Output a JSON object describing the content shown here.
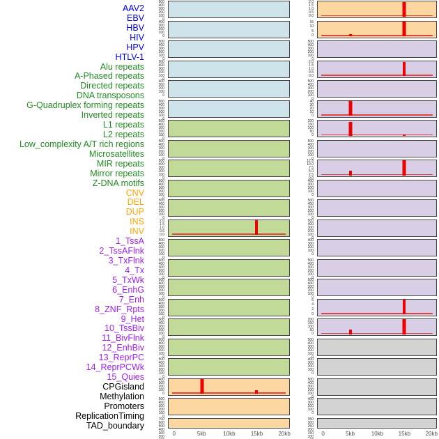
{
  "chart_data": {
    "type": "bar",
    "title": "",
    "x_axis": {
      "range_kb": [
        0,
        20
      ],
      "ticks": [
        {
          "label": "0",
          "kb": 0
        },
        {
          "label": "5kb",
          "kb": 5
        },
        {
          "label": "10kb",
          "kb": 10
        },
        {
          "label": "15kb",
          "kb": 15
        },
        {
          "label": "20kb",
          "kb": 20
        }
      ]
    },
    "groups": {
      "virus": {
        "label_color": "#0000EE",
        "panel_bg": "#cfe3eb"
      },
      "repeat": {
        "label_color": "#228B22",
        "panel_bg": "#c1da97"
      },
      "sv": {
        "label_color": "#FFA500",
        "panel_bg": "#fcd7a2"
      },
      "chromatin": {
        "label_color": "#A020F0",
        "panel_bg": "#d8cee6"
      },
      "other": {
        "label_color": "#000000",
        "panel_bg": "#d3d3d3"
      }
    },
    "spike_color": "#ec0000",
    "baseline_color": "#e24444",
    "panels": [
      {
        "label": "AAV2",
        "group": "virus",
        "column": "left",
        "row": 1,
        "yticks": [
          "500",
          "400",
          "300",
          "200",
          "100",
          "0"
        ],
        "baseline": false,
        "spikes": []
      },
      {
        "label": "EBV",
        "group": "virus",
        "column": "left",
        "row": 2,
        "yticks": [
          "400",
          "300",
          "200",
          "100",
          "0"
        ],
        "baseline": false,
        "spikes": []
      },
      {
        "label": "HBV",
        "group": "virus",
        "column": "left",
        "row": 3,
        "yticks": [
          "500",
          "400",
          "300",
          "200",
          "100",
          "0"
        ],
        "baseline": false,
        "spikes": []
      },
      {
        "label": "HIV",
        "group": "virus",
        "column": "left",
        "row": 4,
        "yticks": [
          "500",
          "400",
          "300",
          "200",
          "100",
          "0"
        ],
        "baseline": false,
        "spikes": []
      },
      {
        "label": "HPV",
        "group": "virus",
        "column": "left",
        "row": 5,
        "yticks": [
          "400",
          "300",
          "200",
          "100",
          "0"
        ],
        "baseline": false,
        "spikes": []
      },
      {
        "label": "HTLV-1",
        "group": "virus",
        "column": "left",
        "row": 6,
        "yticks": [
          "500",
          "400",
          "300",
          "200",
          "100",
          "0"
        ],
        "baseline": false,
        "spikes": []
      },
      {
        "label": "Alu repeats",
        "group": "repeat",
        "column": "left",
        "row": 7,
        "yticks": [
          "500",
          "400",
          "300",
          "200",
          "100",
          "0"
        ],
        "baseline": false,
        "spikes": []
      },
      {
        "label": "A-Phased repeats",
        "group": "repeat",
        "column": "left",
        "row": 8,
        "yticks": [
          "500",
          "400",
          "300",
          "200",
          "100",
          "0"
        ],
        "baseline": false,
        "spikes": []
      },
      {
        "label": "Directed repeats",
        "group": "repeat",
        "column": "left",
        "row": 9,
        "yticks": [
          "500",
          "400",
          "300",
          "200",
          "100",
          "0"
        ],
        "baseline": false,
        "spikes": []
      },
      {
        "label": "DNA transposons",
        "group": "repeat",
        "column": "left",
        "row": 10,
        "yticks": [
          "500",
          "400",
          "300",
          "200",
          "100",
          "0"
        ],
        "baseline": false,
        "spikes": []
      },
      {
        "label": "G-Quadruplex forming repeats",
        "group": "repeat",
        "column": "left",
        "row": 11,
        "yticks": [
          "500",
          "400",
          "300",
          "200",
          "100",
          "0"
        ],
        "baseline": false,
        "spikes": []
      },
      {
        "label": "Inverted repeats",
        "group": "repeat",
        "column": "left",
        "row": 12,
        "yticks": [
          "2.0",
          "1.5",
          "1.0",
          "0.5",
          "0.0"
        ],
        "baseline": true,
        "spikes": [
          {
            "kb": 15,
            "h": 1.0,
            "w": 4
          }
        ]
      },
      {
        "label": "L1 repeats",
        "group": "repeat",
        "column": "left",
        "row": 13,
        "yticks": [
          "500",
          "400",
          "300",
          "200",
          "100",
          "0"
        ],
        "baseline": false,
        "spikes": []
      },
      {
        "label": "L2 repeats",
        "group": "repeat",
        "column": "left",
        "row": 14,
        "yticks": [
          "500",
          "400",
          "300",
          "200",
          "100",
          "0"
        ],
        "baseline": false,
        "spikes": []
      },
      {
        "label": "Low_complexity A/T rich regions",
        "group": "repeat",
        "column": "left",
        "row": 15,
        "yticks": [
          "500",
          "400",
          "300",
          "200",
          "100",
          "0"
        ],
        "baseline": false,
        "spikes": []
      },
      {
        "label": "Microsatellites",
        "group": "repeat",
        "column": "left",
        "row": 16,
        "yticks": [
          "500",
          "400",
          "300",
          "200",
          "100",
          "0"
        ],
        "baseline": false,
        "spikes": []
      },
      {
        "label": "MIR repeats",
        "group": "repeat",
        "column": "left",
        "row": 17,
        "yticks": [
          "500",
          "400",
          "300",
          "200",
          "100",
          "0"
        ],
        "baseline": false,
        "spikes": []
      },
      {
        "label": "Mirror repeats",
        "group": "repeat",
        "column": "left",
        "row": 18,
        "yticks": [
          "500",
          "400",
          "300",
          "200",
          "100",
          "0"
        ],
        "baseline": false,
        "spikes": []
      },
      {
        "label": "Z-DNA motifs",
        "group": "repeat",
        "column": "left",
        "row": 19,
        "yticks": [
          "500",
          "400",
          "300",
          "200",
          "100",
          "0"
        ],
        "baseline": false,
        "spikes": []
      },
      {
        "label": "CNV",
        "group": "sv",
        "column": "left",
        "row": 20,
        "yticks": [
          "400",
          "300",
          "200",
          "100",
          "0"
        ],
        "baseline": true,
        "spikes": [
          {
            "kb": 5,
            "h": 0.97,
            "w": 5
          },
          {
            "kb": 15,
            "h": 0.24,
            "w": 4
          }
        ]
      },
      {
        "label": "DEL",
        "group": "sv",
        "column": "left",
        "row": 21,
        "yticks": [
          "500",
          "400",
          "300",
          "200",
          "100",
          "0"
        ],
        "baseline": false,
        "spikes": []
      },
      {
        "label": "DUP",
        "group": "sv",
        "column": "left",
        "row": 22,
        "yticks": [
          "700",
          "600",
          "500",
          "400",
          "300",
          "200",
          "100",
          "0"
        ],
        "baseline": false,
        "spikes": []
      },
      {
        "label": "INS",
        "group": "sv",
        "column": "right",
        "row": 1,
        "yticks": [
          "2.0",
          "1.5",
          "1.0",
          "0.5",
          "0.0"
        ],
        "baseline": true,
        "spikes": [
          {
            "kb": 15,
            "h": 0.97,
            "w": 5
          }
        ]
      },
      {
        "label": "INV",
        "group": "sv",
        "column": "right",
        "row": 2,
        "yticks": [
          "15",
          "10",
          "5",
          "0"
        ],
        "baseline": true,
        "spikes": [
          {
            "kb": 5,
            "h": 0.13,
            "w": 4
          },
          {
            "kb": 15,
            "h": 0.97,
            "w": 5
          }
        ]
      },
      {
        "label": "1_TssA",
        "group": "chromatin",
        "column": "right",
        "row": 3,
        "yticks": [
          "500",
          "400",
          "300",
          "200",
          "100",
          "0"
        ],
        "baseline": false,
        "spikes": []
      },
      {
        "label": "2_TssAFlnk",
        "group": "chromatin",
        "column": "right",
        "row": 4,
        "yticks": [
          "2.0",
          "1.5",
          "1.0",
          "0.5",
          "0.0"
        ],
        "baseline": true,
        "spikes": [
          {
            "kb": 15,
            "h": 0.95,
            "w": 4
          }
        ]
      },
      {
        "label": "3_TxFlnk",
        "group": "chromatin",
        "column": "right",
        "row": 5,
        "yticks": [
          "500",
          "400",
          "300",
          "200",
          "100",
          "0"
        ],
        "baseline": false,
        "spikes": []
      },
      {
        "label": "4_Tx",
        "group": "chromatin",
        "column": "right",
        "row": 6,
        "yticks": [
          "40",
          "30",
          "20",
          "10",
          "0"
        ],
        "baseline": true,
        "spikes": [
          {
            "kb": 5,
            "h": 1.0,
            "w": 5
          }
        ]
      },
      {
        "label": "5_TxWk",
        "group": "chromatin",
        "column": "right",
        "row": 7,
        "yticks": [
          "200",
          "150",
          "100",
          "50",
          "0"
        ],
        "baseline": true,
        "spikes": [
          {
            "kb": 5,
            "h": 0.93,
            "w": 5
          },
          {
            "kb": 15,
            "h": 0.07,
            "w": 4
          }
        ]
      },
      {
        "label": "6_EnhG",
        "group": "chromatin",
        "column": "right",
        "row": 8,
        "yticks": [
          "500",
          "400",
          "300",
          "200",
          "100",
          "0"
        ],
        "baseline": false,
        "spikes": []
      },
      {
        "label": "7_Enh",
        "group": "chromatin",
        "column": "right",
        "row": 9,
        "yticks": [
          "12.5",
          "10.0",
          "7.5",
          "5.0",
          "2.5",
          "0.0"
        ],
        "baseline": true,
        "spikes": [
          {
            "kb": 5,
            "h": 0.32,
            "w": 4
          },
          {
            "kb": 15,
            "h": 1.0,
            "w": 5
          }
        ]
      },
      {
        "label": "8_ZNF_Rpts",
        "group": "chromatin",
        "column": "right",
        "row": 10,
        "yticks": [
          "400",
          "300",
          "200",
          "100",
          "0"
        ],
        "baseline": false,
        "spikes": []
      },
      {
        "label": "9_Het",
        "group": "chromatin",
        "column": "right",
        "row": 11,
        "yticks": [
          "500",
          "400",
          "300",
          "200",
          "100",
          "0"
        ],
        "baseline": false,
        "spikes": []
      },
      {
        "label": "10_TssBiv",
        "group": "chromatin",
        "column": "right",
        "row": 12,
        "yticks": [
          "500",
          "400",
          "300",
          "200",
          "100",
          "0"
        ],
        "baseline": false,
        "spikes": []
      },
      {
        "label": "11_BivFlnk",
        "group": "chromatin",
        "column": "right",
        "row": 13,
        "yticks": [
          "400",
          "300",
          "200",
          "100",
          "0"
        ],
        "baseline": false,
        "spikes": []
      },
      {
        "label": "12_EnhBiv",
        "group": "chromatin",
        "column": "right",
        "row": 14,
        "yticks": [
          "500",
          "400",
          "300",
          "200",
          "100",
          "0"
        ],
        "baseline": false,
        "spikes": []
      },
      {
        "label": "13_ReprPC",
        "group": "chromatin",
        "column": "right",
        "row": 15,
        "yticks": [
          "500",
          "400",
          "300",
          "200",
          "100",
          "0"
        ],
        "baseline": false,
        "spikes": []
      },
      {
        "label": "14_ReprPCWk",
        "group": "chromatin",
        "column": "right",
        "row": 16,
        "yticks": [
          "6",
          "4",
          "2",
          "0"
        ],
        "baseline": true,
        "spikes": [
          {
            "kb": 15,
            "h": 1.0,
            "w": 4
          }
        ]
      },
      {
        "label": "15_Quies",
        "group": "chromatin",
        "column": "right",
        "row": 17,
        "yticks": [
          "200",
          "150",
          "100",
          "50",
          "0"
        ],
        "baseline": true,
        "spikes": [
          {
            "kb": 5,
            "h": 0.3,
            "w": 4
          },
          {
            "kb": 15,
            "h": 1.0,
            "w": 5
          }
        ]
      },
      {
        "label": "CPGisland",
        "group": "other",
        "column": "right",
        "row": 18,
        "yticks": [
          "500",
          "400",
          "300",
          "200",
          "100",
          "0"
        ],
        "baseline": false,
        "spikes": []
      },
      {
        "label": "Methylation",
        "group": "other",
        "column": "right",
        "row": 19,
        "yticks": [
          "400",
          "300",
          "200",
          "100",
          "0"
        ],
        "baseline": false,
        "spikes": []
      },
      {
        "label": "Promoters",
        "group": "other",
        "column": "right",
        "row": 20,
        "yticks": [
          "500",
          "400",
          "300",
          "200",
          "100",
          "0"
        ],
        "baseline": false,
        "spikes": []
      },
      {
        "label": "ReplicationTiming",
        "group": "other",
        "column": "right",
        "row": 21,
        "yticks": [
          "400",
          "300",
          "200",
          "100",
          "0"
        ],
        "baseline": false,
        "spikes": []
      },
      {
        "label": "TAD_boundary",
        "group": "other",
        "column": "right",
        "row": 22,
        "yticks": [
          "350",
          "300",
          "250",
          "200",
          "150",
          "100",
          "50",
          "0"
        ],
        "baseline": false,
        "spikes": []
      }
    ]
  }
}
